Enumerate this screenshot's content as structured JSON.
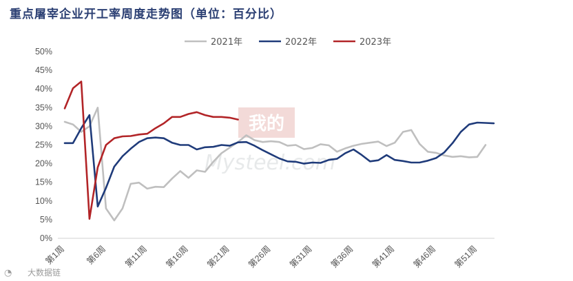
{
  "title": "重点屠宰企业开工率周度走势图（单位：百分比）",
  "watermark": {
    "top": "我的",
    "bottom": "Mysteel.com"
  },
  "brand": "大数据链",
  "chart_data": {
    "type": "line",
    "xlabel": "",
    "ylabel": "",
    "ylim": [
      0,
      50
    ],
    "xlim": [
      1,
      53
    ],
    "grid": false,
    "legend_position": "top",
    "y_ticks": [
      "0%",
      "5%",
      "10%",
      "15%",
      "20%",
      "25%",
      "30%",
      "35%",
      "40%",
      "45%",
      "50%"
    ],
    "x_ticks": [
      {
        "week": 1,
        "label": "第1周"
      },
      {
        "week": 6,
        "label": "第6周"
      },
      {
        "week": 11,
        "label": "第11周"
      },
      {
        "week": 16,
        "label": "第16周"
      },
      {
        "week": 21,
        "label": "第21周"
      },
      {
        "week": 26,
        "label": "第26周"
      },
      {
        "week": 31,
        "label": "第31周"
      },
      {
        "week": 36,
        "label": "第36周"
      },
      {
        "week": 41,
        "label": "第41周"
      },
      {
        "week": 46,
        "label": "第46周"
      },
      {
        "week": 51,
        "label": "第51周"
      }
    ],
    "series": [
      {
        "name": "2021年",
        "color": "#bfbfbf",
        "x": [
          1,
          2,
          3,
          4,
          5,
          6,
          7,
          8,
          9,
          10,
          11,
          12,
          13,
          14,
          15,
          16,
          17,
          18,
          19,
          20,
          21,
          22,
          23,
          24,
          25,
          26,
          27,
          28,
          29,
          30,
          31,
          32,
          33,
          34,
          35,
          36,
          37,
          38,
          39,
          40,
          41,
          42,
          43,
          44,
          45,
          46,
          47,
          48,
          49,
          50,
          51,
          52
        ],
        "values": [
          31.2,
          30.5,
          28.5,
          30,
          35,
          8,
          4.8,
          8,
          14.6,
          14.9,
          13.3,
          13.8,
          13.7,
          16,
          18,
          16.2,
          18.2,
          17.8,
          20.5,
          22.8,
          24.3,
          25.8,
          27.6,
          26.3,
          25.8,
          26,
          25.8,
          24.8,
          25,
          23.9,
          24.2,
          25.2,
          24.9,
          23.2,
          24.1,
          24.8,
          25.3,
          25.6,
          25.9,
          24.7,
          25.6,
          28.5,
          29,
          25.3,
          23.2,
          22.9,
          22.2,
          21.8,
          22,
          21.7,
          21.8,
          25
        ]
      },
      {
        "name": "2022年",
        "color": "#1f3b7a",
        "x": [
          1,
          2,
          3,
          4,
          5,
          6,
          7,
          8,
          9,
          10,
          11,
          12,
          13,
          14,
          15,
          16,
          17,
          18,
          19,
          20,
          21,
          22,
          23,
          24,
          25,
          26,
          27,
          28,
          29,
          30,
          31,
          32,
          33,
          34,
          35,
          36,
          37,
          38,
          39,
          40,
          41,
          42,
          43,
          44,
          45,
          46,
          47,
          48,
          49,
          50,
          51,
          52,
          53
        ],
        "values": [
          25.5,
          25.5,
          29.5,
          33,
          8.5,
          13.5,
          19.2,
          22,
          24,
          25.8,
          26.8,
          27,
          26.8,
          25.6,
          25,
          25,
          23.8,
          24.4,
          24.5,
          25,
          24.8,
          25.7,
          25.8,
          24.8,
          23.6,
          22.5,
          21.4,
          20.6,
          20.5,
          20,
          20.3,
          20.2,
          21,
          21.3,
          22.8,
          23.8,
          22.3,
          20.6,
          20.9,
          22.3,
          21,
          20.7,
          20.3,
          20.3,
          20.8,
          21.5,
          23,
          25.5,
          28.5,
          30.5,
          31,
          30.9,
          30.8
        ]
      },
      {
        "name": "2023年",
        "color": "#b22427",
        "x": [
          1,
          2,
          3,
          4,
          5,
          6,
          7,
          8,
          9,
          10,
          11,
          12,
          13,
          14,
          15,
          16,
          17,
          18,
          19,
          20,
          21,
          22
        ],
        "values": [
          34.8,
          40.2,
          42,
          5.2,
          19,
          25,
          26.8,
          27.3,
          27.4,
          27.8,
          28,
          29.5,
          30.8,
          32.5,
          32.5,
          33.3,
          33.8,
          33,
          32.5,
          32.5,
          32.3,
          31.8
        ]
      }
    ]
  }
}
